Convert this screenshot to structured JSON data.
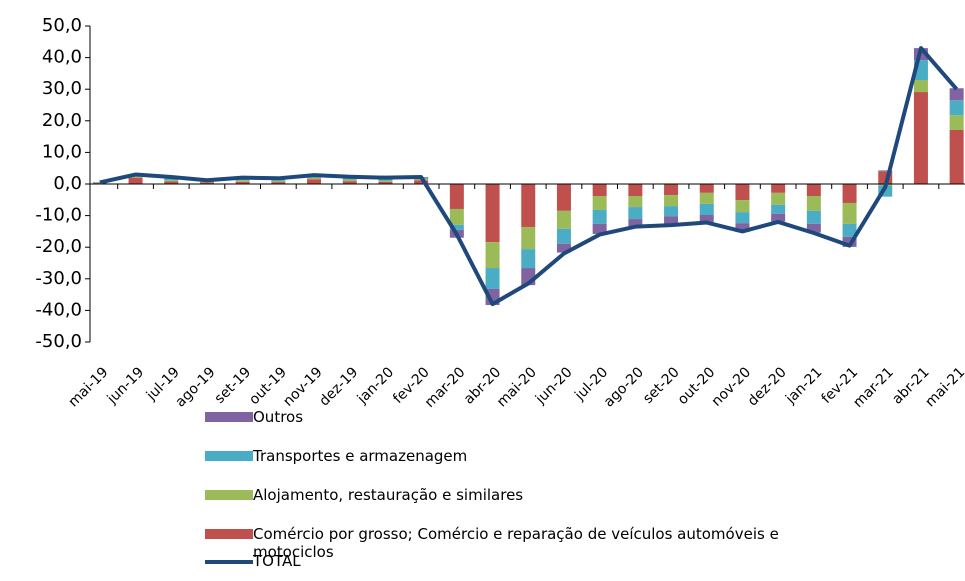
{
  "chart_data": {
    "type": "bar",
    "stacked": true,
    "categories": [
      "mai-19",
      "jun-19",
      "jul-19",
      "ago-19",
      "set-19",
      "out-19",
      "nov-19",
      "dez-19",
      "jan-20",
      "fev-20",
      "mar-20",
      "abr-20",
      "mai-20",
      "jun-20",
      "jul-20",
      "ago-20",
      "set-20",
      "out-20",
      "nov-20",
      "dez-20",
      "jan-21",
      "fev-21",
      "mar-21",
      "abr-21",
      "mai-21"
    ],
    "series": [
      {
        "name": "Comércio por grosso; Comércio e reparação de veículos automóveis e motociclos",
        "color": "#c0504d",
        "values": [
          0.3,
          2.0,
          0.8,
          0.5,
          0.7,
          0.6,
          1.5,
          0.9,
          0.7,
          1.2,
          -7.9,
          -18.4,
          -13.6,
          -8.5,
          -3.8,
          -3.8,
          -3.5,
          -2.8,
          -5.1,
          -2.8,
          -3.8,
          -6.0,
          4.0,
          29.1,
          17.1
        ]
      },
      {
        "name": "Alojamento, restauração e similares",
        "color": "#9bbb59",
        "values": [
          0.1,
          0.3,
          0.4,
          0.3,
          0.5,
          0.4,
          0.5,
          0.5,
          0.4,
          0.3,
          -5.0,
          -8.2,
          -7.0,
          -5.7,
          -4.4,
          -3.5,
          -3.5,
          -3.5,
          -3.8,
          -3.8,
          -4.7,
          -6.6,
          -0.5,
          3.8,
          4.7
        ]
      },
      {
        "name": "Transportes e armazenagem",
        "color": "#4bacc6",
        "values": [
          0.1,
          0.4,
          0.7,
          0.3,
          0.6,
          0.6,
          0.6,
          0.7,
          0.7,
          0.5,
          -1.6,
          -6.6,
          -6.0,
          -4.7,
          -4.4,
          -3.8,
          -3.2,
          -3.5,
          -3.5,
          -2.8,
          -4.1,
          -4.1,
          -3.5,
          6.3,
          4.7
        ]
      },
      {
        "name": "Outros",
        "color": "#8064a2",
        "values": [
          0.1,
          0.3,
          0.3,
          0.1,
          0.2,
          0.2,
          0.2,
          0.2,
          0.2,
          0.2,
          -2.5,
          -5.1,
          -5.4,
          -2.8,
          -3.2,
          -2.2,
          -2.5,
          -2.2,
          -2.8,
          -2.5,
          -2.8,
          -3.2,
          0.3,
          3.8,
          3.8
        ]
      },
      {
        "name": "TOTAL",
        "type": "line",
        "color": "#1f497d",
        "values": [
          0.5,
          3.0,
          2.2,
          1.2,
          2.0,
          1.8,
          2.8,
          2.3,
          2.0,
          2.2,
          -16.0,
          -38.0,
          -31.5,
          -22.0,
          -16.0,
          -13.5,
          -13.0,
          -12.2,
          -15.0,
          -12.0,
          -15.5,
          -19.5,
          -1.0,
          43.0,
          30.0
        ]
      }
    ],
    "ylim": [
      -50,
      50
    ],
    "yticks": [
      {
        "value": -50,
        "label": "-50,0"
      },
      {
        "value": -40,
        "label": "-40,0"
      },
      {
        "value": -30,
        "label": "-30,0"
      },
      {
        "value": -20,
        "label": "-20,0"
      },
      {
        "value": -10,
        "label": "-10,0"
      },
      {
        "value": 0,
        "label": "0,0"
      },
      {
        "value": 10,
        "label": "10,0"
      },
      {
        "value": 20,
        "label": "20,0"
      },
      {
        "value": 30,
        "label": "30,0"
      },
      {
        "value": 40,
        "label": "40,0"
      },
      {
        "value": 50,
        "label": "50,0"
      }
    ],
    "grid": false
  }
}
